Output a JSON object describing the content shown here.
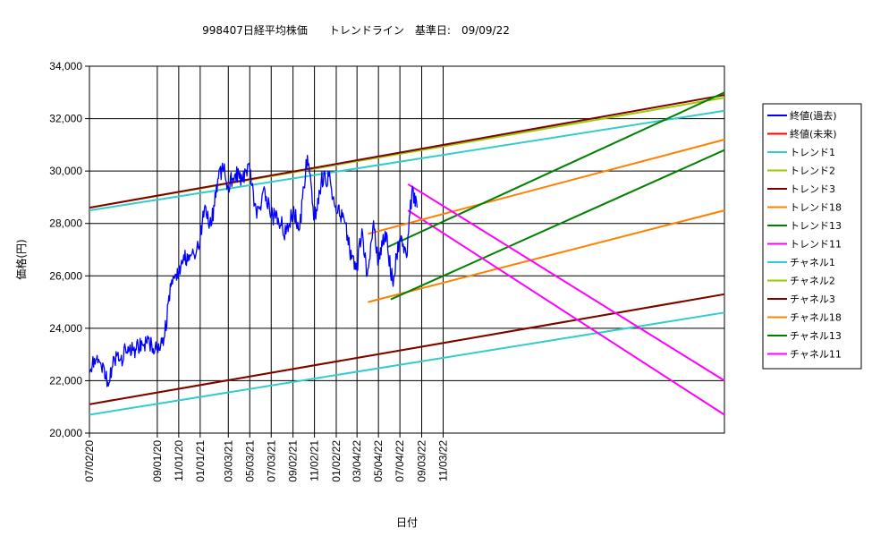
{
  "chart_data": {
    "type": "line",
    "title": "998407日経平均株価　　トレンドライン　基準日:　09/09/22",
    "xlabel": "日付",
    "ylabel": "価格(円)",
    "ylim": [
      20000,
      34000
    ],
    "yticks": [
      20000,
      22000,
      24000,
      26000,
      28000,
      30000,
      32000,
      34000
    ],
    "ytick_labels": [
      "20,000",
      "22,000",
      "24,000",
      "26,000",
      "28,000",
      "30,000",
      "32,000",
      "34,000"
    ],
    "xlim": [
      "2007-02-20",
      "2012-01-31"
    ],
    "xticks": [
      "2007-02-20",
      "2007-09-01",
      "2007-11-01",
      "2008-01-01",
      "2008-03-21",
      "2008-05-21",
      "2008-07-21",
      "2008-09-21",
      "2008-11-21",
      "2009-01-22",
      "2009-03-22",
      "2009-05-22",
      "2009-07-22",
      "2009-09-22",
      "2009-11-22"
    ],
    "xtick_labels": [
      "07/02/20",
      "09/01/20",
      "11/01/20",
      "01/01/21",
      "03/03/21",
      "05/03/21",
      "07/03/21",
      "09/02/21",
      "11/02/21",
      "01/02/22",
      "03/04/22",
      "05/04/22",
      "07/04/22",
      "09/03/22",
      "11/03/22"
    ],
    "grid": true,
    "legend_position": "right",
    "series": [
      {
        "name": "終値(過去)",
        "color": "#0000ff",
        "kind": "price",
        "x": [
          "2007-02-20",
          "2007-03-10",
          "2007-04-01",
          "2007-04-15",
          "2007-05-01",
          "2007-05-20",
          "2007-06-10",
          "2007-07-01",
          "2007-07-20",
          "2007-08-10",
          "2007-09-01",
          "2007-09-20",
          "2007-10-10",
          "2007-11-01",
          "2007-11-15",
          "2007-12-01",
          "2007-12-15",
          "2008-01-01",
          "2008-01-15",
          "2008-02-01",
          "2008-02-20",
          "2008-03-08",
          "2008-03-21",
          "2008-04-10",
          "2008-05-01",
          "2008-05-21",
          "2008-06-10",
          "2008-07-01",
          "2008-07-21",
          "2008-08-10",
          "2008-09-01",
          "2008-09-21",
          "2008-10-10",
          "2008-11-01",
          "2008-11-21",
          "2008-12-10",
          "2009-01-01",
          "2009-01-22",
          "2009-02-10",
          "2009-03-01",
          "2009-03-22",
          "2009-04-05",
          "2009-04-20",
          "2009-05-08",
          "2009-05-22",
          "2009-06-10",
          "2009-07-01",
          "2009-07-22",
          "2009-08-10",
          "2009-08-25",
          "2009-09-09"
        ],
        "y": [
          22300,
          22800,
          22600,
          21800,
          22900,
          22800,
          23300,
          23200,
          23400,
          23400,
          23300,
          23600,
          25600,
          26100,
          26800,
          26600,
          26800,
          27400,
          28700,
          27900,
          29700,
          30100,
          29400,
          29900,
          29600,
          30100,
          28200,
          29400,
          28300,
          28200,
          27600,
          28500,
          27800,
          30600,
          28200,
          29600,
          29800,
          28400,
          28400,
          27000,
          26200,
          27800,
          26000,
          28100,
          26500,
          27700,
          25800,
          27400,
          26700,
          29200,
          28600
        ]
      },
      {
        "name": "終値(未来)",
        "color": "#ff0000",
        "kind": "future",
        "x": [],
        "y": []
      },
      {
        "name": "トレンド1",
        "color": "#33cccc",
        "kind": "line",
        "x": [
          "2007-02-20",
          "2012-01-31"
        ],
        "y": [
          28500,
          32300
        ]
      },
      {
        "name": "トレンド2",
        "color": "#99cc00",
        "kind": "line",
        "x": [
          "2007-02-20",
          "2012-01-31"
        ],
        "y": [
          28600,
          32800
        ]
      },
      {
        "name": "トレンド3",
        "color": "#800000",
        "kind": "line",
        "x": [
          "2007-02-20",
          "2012-01-31"
        ],
        "y": [
          28600,
          32900
        ]
      },
      {
        "name": "トレンド18",
        "color": "#ff8000",
        "kind": "line",
        "x": [
          "2009-04-22",
          "2012-01-31"
        ],
        "y": [
          27600,
          31200
        ]
      },
      {
        "name": "トレンド13",
        "color": "#008000",
        "kind": "line",
        "x": [
          "2009-06-17",
          "2012-01-31"
        ],
        "y": [
          27100,
          33000
        ]
      },
      {
        "name": "トレンド11",
        "color": "#ff00ff",
        "kind": "line",
        "x": [
          "2009-08-14",
          "2012-01-31"
        ],
        "y": [
          29500,
          22000
        ]
      },
      {
        "name": "チャネル1",
        "color": "#33cccc",
        "kind": "line",
        "x": [
          "2007-02-20",
          "2012-01-31"
        ],
        "y": [
          20700,
          24600
        ]
      },
      {
        "name": "チャネル2",
        "color": "#99cc00",
        "kind": "line",
        "x": [
          "2007-02-20",
          "2012-01-31"
        ],
        "y": [
          21100,
          25300
        ]
      },
      {
        "name": "チャネル3",
        "color": "#800000",
        "kind": "line",
        "x": [
          "2007-02-20",
          "2012-01-31"
        ],
        "y": [
          21100,
          25300
        ]
      },
      {
        "name": "チャネル18",
        "color": "#ff8000",
        "kind": "line",
        "x": [
          "2009-04-22",
          "2012-01-31"
        ],
        "y": [
          25000,
          28500
        ]
      },
      {
        "name": "チャネル13",
        "color": "#008000",
        "kind": "line",
        "x": [
          "2009-06-26",
          "2012-01-31"
        ],
        "y": [
          25100,
          30800
        ]
      },
      {
        "name": "チャネル11",
        "color": "#ff00ff",
        "kind": "line",
        "x": [
          "2009-08-14",
          "2012-01-31"
        ],
        "y": [
          28500,
          20700
        ]
      }
    ]
  }
}
